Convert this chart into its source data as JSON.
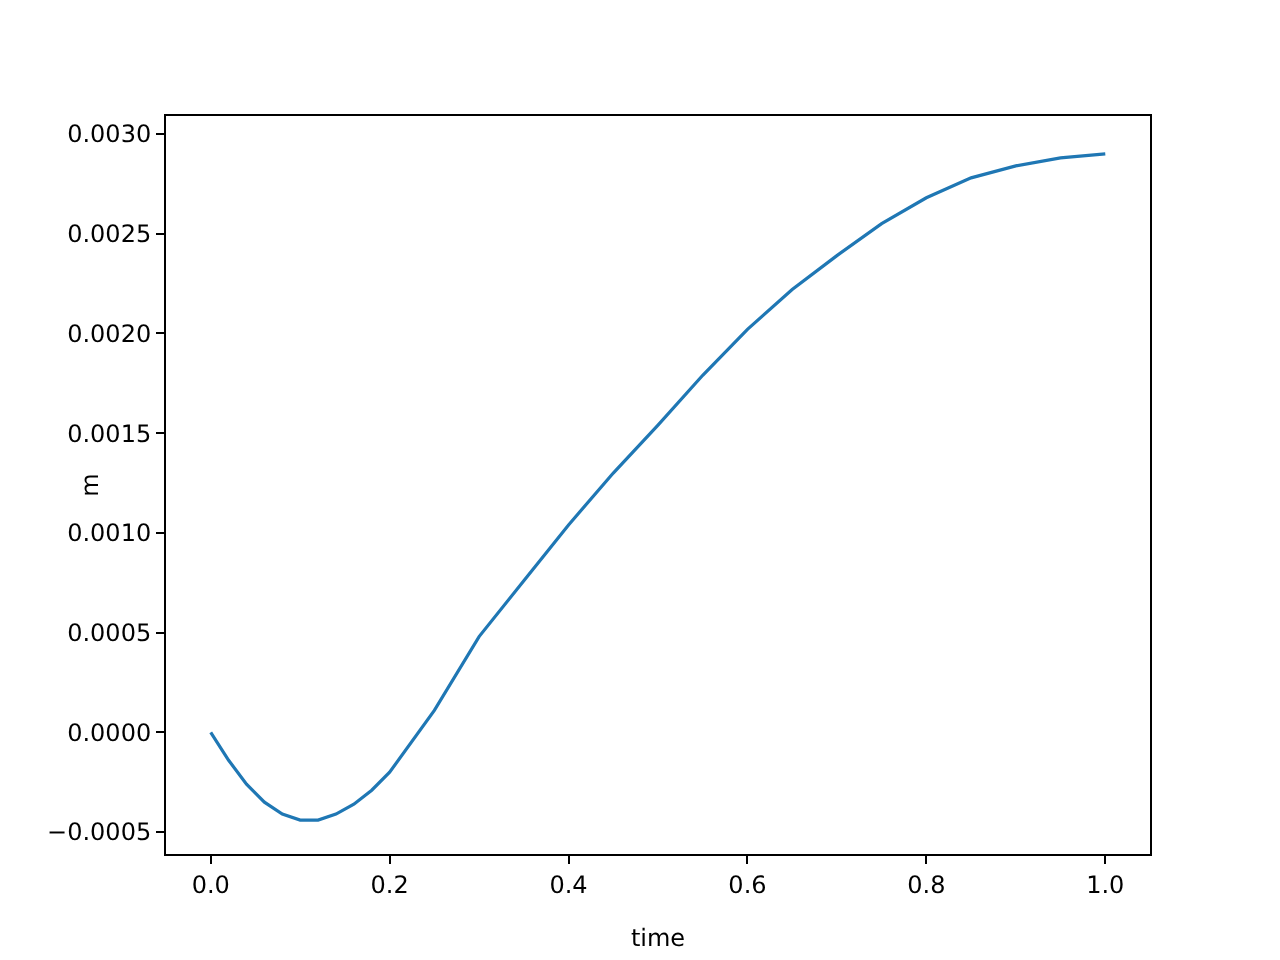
{
  "chart_data": {
    "type": "line",
    "xlabel": "time",
    "ylabel": "m",
    "x": [
      0,
      0.02,
      0.04,
      0.06,
      0.08,
      0.1,
      0.12,
      0.14,
      0.16,
      0.18,
      0.2,
      0.25,
      0.3,
      0.35,
      0.4,
      0.45,
      0.5,
      0.55,
      0.6,
      0.65,
      0.7,
      0.75,
      0.8,
      0.85,
      0.9,
      0.95,
      1.0
    ],
    "series": [
      {
        "color": "#1f77b4",
        "values": [
          0,
          -0.00014,
          -0.00026,
          -0.00035,
          -0.00041,
          -0.00044,
          -0.00044,
          -0.00041,
          -0.00036,
          -0.00029,
          -0.0002,
          0.00011,
          0.00048,
          0.00076,
          0.00104,
          0.0013,
          0.00154,
          0.00179,
          0.00202,
          0.00222,
          0.00239,
          0.00255,
          0.00268,
          0.00278,
          0.00284,
          0.00288,
          0.0029
        ]
      }
    ],
    "xlim": [
      -0.05,
      1.05
    ],
    "xticks": [
      {
        "value": 0,
        "label": "0.0"
      },
      0.2,
      0.4,
      0.6,
      0.8,
      {
        "value": 1,
        "label": "1.0"
      }
    ],
    "ylim": [
      -0.00061,
      0.00309
    ],
    "yticks": [
      {
        "value": -0.0005,
        "label": "−0.0005"
      },
      {
        "value": 0,
        "label": "0.0000"
      },
      0.0005,
      {
        "value": 0.001,
        "label": "0.0010"
      },
      0.0015,
      {
        "value": 0.002,
        "label": "0.0020"
      },
      0.0025,
      {
        "value": 0.003,
        "label": "0.0030"
      }
    ],
    "grid": false,
    "line_style": "solid",
    "marker": "none"
  }
}
